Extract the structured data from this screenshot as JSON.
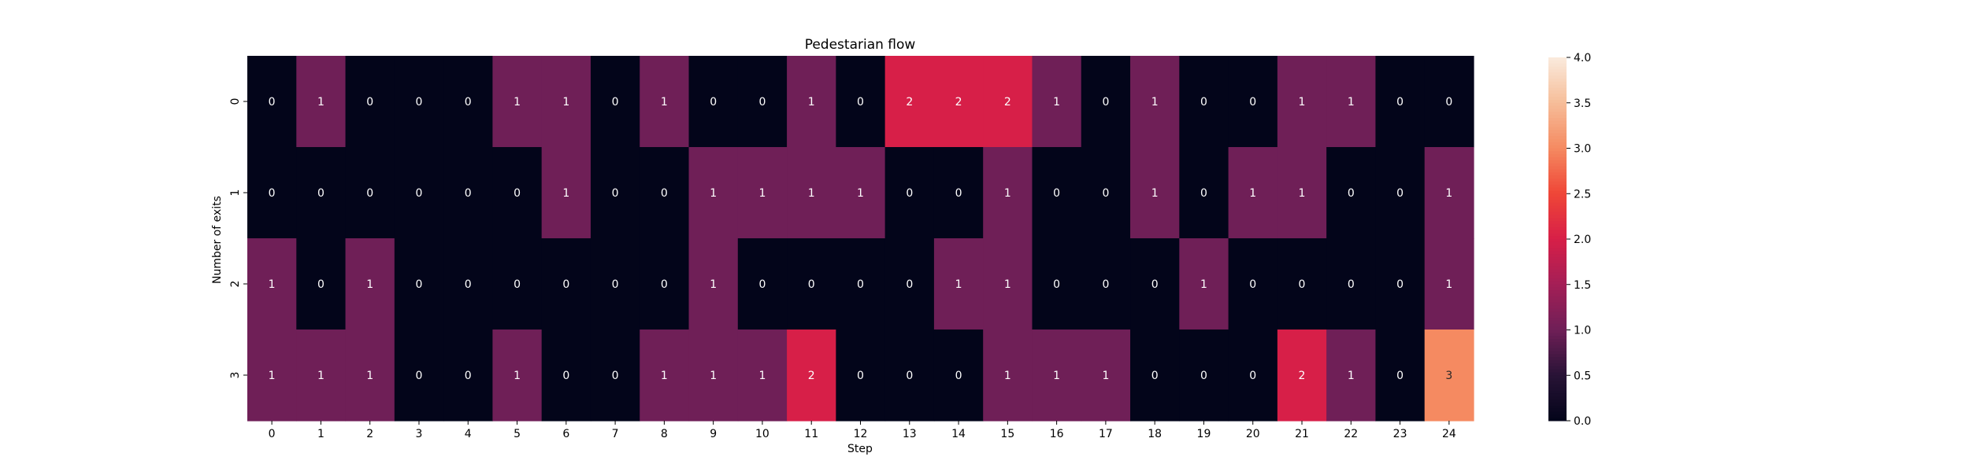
{
  "chart_data": {
    "type": "heatmap",
    "title": "Pedestarian flow",
    "xlabel": "Step",
    "ylabel": "Number of exits",
    "x_categories": [
      "0",
      "1",
      "2",
      "3",
      "4",
      "5",
      "6",
      "7",
      "8",
      "9",
      "10",
      "11",
      "12",
      "13",
      "14",
      "15",
      "16",
      "17",
      "18",
      "19",
      "20",
      "21",
      "22",
      "23",
      "24"
    ],
    "y_categories": [
      "0",
      "1",
      "2",
      "3"
    ],
    "values": [
      [
        0,
        1,
        0,
        0,
        0,
        1,
        1,
        0,
        1,
        0,
        0,
        1,
        0,
        2,
        2,
        2,
        1,
        0,
        1,
        0,
        0,
        1,
        1,
        0,
        0
      ],
      [
        0,
        0,
        0,
        0,
        0,
        0,
        1,
        0,
        0,
        1,
        1,
        1,
        1,
        0,
        0,
        1,
        0,
        0,
        1,
        0,
        1,
        1,
        0,
        0,
        1
      ],
      [
        1,
        0,
        1,
        0,
        0,
        0,
        0,
        0,
        0,
        1,
        0,
        0,
        0,
        0,
        1,
        1,
        0,
        0,
        0,
        1,
        0,
        0,
        0,
        0,
        1
      ],
      [
        1,
        1,
        1,
        0,
        0,
        1,
        0,
        0,
        1,
        1,
        1,
        2,
        0,
        0,
        0,
        1,
        1,
        1,
        0,
        0,
        0,
        2,
        1,
        0,
        3
      ]
    ],
    "colorbar": {
      "vmin": 0,
      "vmax": 4,
      "ticks": [
        "0.0",
        "0.5",
        "1.0",
        "1.5",
        "2.0",
        "2.5",
        "3.0",
        "3.5",
        "4.0"
      ],
      "colormap": "rocket"
    }
  }
}
